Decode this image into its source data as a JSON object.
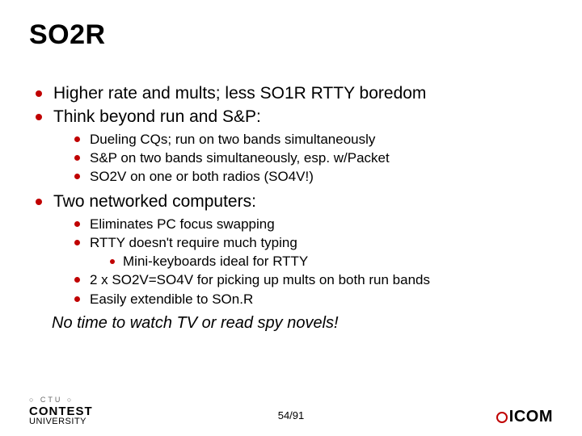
{
  "title": "SO2R",
  "accent_color": "#c00000",
  "text_color": "#000000",
  "background_color": "#ffffff",
  "font_family": "Arial",
  "page_number": "54/91",
  "bullets_l1_a": [
    "Higher rate and mults; less SO1R RTTY boredom",
    "Think beyond run and S&P:"
  ],
  "bullets_l2_a": [
    "Dueling CQs; run on two bands simultaneously",
    "S&P on two bands simultaneously, esp. w/Packet",
    "SO2V on one or both radios (SO4V!)"
  ],
  "bullets_l1_b": [
    "Two networked computers:"
  ],
  "bullets_l2_b1": [
    "Eliminates PC focus swapping",
    "RTTY doesn't require much typing"
  ],
  "bullets_l3": [
    "Mini-keyboards ideal for RTTY"
  ],
  "bullets_l2_b2": [
    "2 x SO2V=SO4V for picking up mults on both run bands",
    "Easily extendible to SOn.R"
  ],
  "closing": "No time to watch TV or read spy novels!",
  "footer_left": {
    "tag": "○ CTU ○",
    "line1": "CONTEST",
    "line2": "UNIVERSITY"
  },
  "footer_right": "ICOM"
}
